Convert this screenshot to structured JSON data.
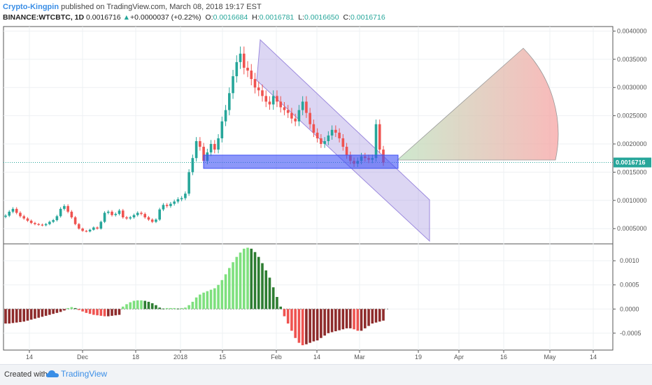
{
  "header": {
    "author": "Crypto-Kingpin",
    "published": "published on TradingView.com, March 08, 2018 19:17 EST",
    "symbol": "BINANCE:WTCBTC, 1D",
    "last": "0.0016716",
    "change": "+0.0000037 (+0.22%)",
    "o_label": "O:",
    "o_val": "0.0016684",
    "h_label": "H:",
    "h_val": "0.0016781",
    "l_label": "L:",
    "l_val": "0.0016650",
    "c_label": "C:",
    "c_val": "0.0016716"
  },
  "footer": {
    "created": "Created with",
    "brand": "TradingView"
  },
  "colors": {
    "up": "#26a69a",
    "down": "#ef5350",
    "accent": "#3a8ee6",
    "channel": "#9c8ade",
    "zone": "#3f51f5"
  },
  "chart_data": {
    "type": "candlestick",
    "x_tick_labels": [
      "14",
      "Dec",
      "18",
      "2018",
      "15",
      "Feb",
      "14",
      "Mar",
      "19",
      "Apr",
      "16",
      "May",
      "14"
    ],
    "price_axis": {
      "ticks": [
        0.0005,
        0.001,
        0.0015,
        0.002,
        0.0025,
        0.003,
        0.0035,
        0.004
      ],
      "tick_labels": [
        "0.0005000",
        "0.0010000",
        "0.0015000",
        "0.0020000",
        "0.0025000",
        "0.0030000",
        "0.0035000",
        "0.0040000"
      ],
      "last_price": 0.0016716,
      "last_label": "0.0016716",
      "ylim": [
        0.00023,
        0.00408
      ]
    },
    "oscillator_axis": {
      "ticks": [
        -0.0005,
        0,
        0.0005,
        0.001
      ],
      "tick_labels": [
        "-0.0005",
        "0.0000",
        "0.0005",
        "0.0010"
      ],
      "ylim": [
        -0.00085,
        0.00135
      ]
    },
    "price_close_path": [
      0.00073,
      0.0008,
      0.00085,
      0.00078,
      0.00072,
      0.00068,
      0.00064,
      0.0006,
      0.00058,
      0.00057,
      0.00056,
      0.00058,
      0.00062,
      0.00065,
      0.00072,
      0.00085,
      0.0009,
      0.0008,
      0.0007,
      0.00058,
      0.0005,
      0.00046,
      0.00045,
      0.00048,
      0.00052,
      0.0005,
      0.00062,
      0.00078,
      0.0008,
      0.00074,
      0.00076,
      0.00082,
      0.0007,
      0.00068,
      0.0007,
      0.00074,
      0.00078,
      0.00076,
      0.0007,
      0.00066,
      0.00062,
      0.00066,
      0.00084,
      0.00092,
      0.0009,
      0.00094,
      0.00098,
      0.00102,
      0.00104,
      0.00112,
      0.0015,
      0.00175,
      0.00205,
      0.00195,
      0.0017,
      0.00185,
      0.002,
      0.0019,
      0.0021,
      0.0024,
      0.0026,
      0.0029,
      0.0032,
      0.00345,
      0.0036,
      0.00335,
      0.0033,
      0.00315,
      0.003,
      0.00295,
      0.00285,
      0.00275,
      0.0027,
      0.00285,
      0.00275,
      0.00265,
      0.0026,
      0.00255,
      0.00245,
      0.0024,
      0.0026,
      0.00275,
      0.00255,
      0.00235,
      0.0022,
      0.0021,
      0.002,
      0.00205,
      0.00215,
      0.00225,
      0.0022,
      0.0021,
      0.00195,
      0.0018,
      0.0017,
      0.00165,
      0.0017,
      0.00178,
      0.00175,
      0.00172,
      0.00175,
      0.00235,
      0.0019,
      0.00167
    ],
    "oscillator_path": [
      -0.0003,
      -0.0003,
      -0.00029,
      -0.00028,
      -0.00027,
      -0.00026,
      -0.00024,
      -0.00022,
      -0.0002,
      -0.00018,
      -0.00016,
      -0.00014,
      -0.00012,
      -0.0001,
      -8e-05,
      -6e-05,
      -3e-05,
      2e-05,
      4e-05,
      2e-05,
      -2e-05,
      -5e-05,
      -8e-05,
      -0.0001,
      -0.00012,
      -0.00013,
      -0.00014,
      -0.00015,
      -0.00015,
      -0.00014,
      -0.00013,
      -0.00012,
      5e-05,
      0.0001,
      0.00014,
      0.00017,
      0.00018,
      0.00018,
      0.00017,
      0.00015,
      0.00012,
      8e-05,
      3e-05,
      1e-05,
      2e-05,
      2e-05,
      2e-05,
      1e-05,
      2e-05,
      3e-05,
      8e-05,
      0.00015,
      0.00024,
      0.0003,
      0.00034,
      0.00037,
      0.0004,
      0.00043,
      0.0005,
      0.0006,
      0.00072,
      0.00085,
      0.00097,
      0.00108,
      0.00117,
      0.00125,
      0.00127,
      0.00125,
      0.00118,
      0.00108,
      0.00095,
      0.0008,
      0.00065,
      0.00045,
      0.00025,
      5e-05,
      -0.00015,
      -0.0003,
      -0.00045,
      -0.0006,
      -0.0007,
      -0.00075,
      -0.00073,
      -0.0007,
      -0.00067,
      -0.00065,
      -0.0006,
      -0.00055,
      -0.0005,
      -0.00048,
      -0.00046,
      -0.00044,
      -0.00042,
      -0.0004,
      -0.0004,
      -0.00042,
      -0.00045,
      -0.00045,
      -0.0004,
      -0.00035,
      -0.0003,
      -0.00028,
      -0.00026,
      -0.00024
    ]
  }
}
